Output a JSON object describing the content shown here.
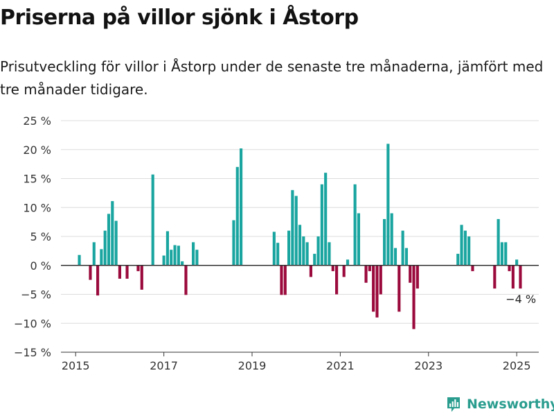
{
  "header": {
    "title": "Priserna på villor sjönk i Åstorp",
    "subtitle": "Prisutveckling för villor i Åstorp under de senaste tre månaderna, jämfört med tre månader tidigare."
  },
  "brand": {
    "name": "Newsworthy",
    "icon": "newsworthy-logo-icon"
  },
  "colors": {
    "positive": "#1aa5a0",
    "negative": "#9b0a3c",
    "grid": "#dcdcdc",
    "axis": "#333333"
  },
  "chart_data": {
    "type": "bar",
    "x_unit": "month",
    "yticks": [
      "25 %",
      "20 %",
      "15 %",
      "10 %",
      "5 %",
      "0 %",
      "−5 %",
      "−10 %",
      "−15 %"
    ],
    "ytick_values": [
      25,
      20,
      15,
      10,
      5,
      0,
      -5,
      -10,
      -15
    ],
    "xticks": [
      "2015",
      "2017",
      "2019",
      "2021",
      "2023",
      "2025"
    ],
    "xtick_dates": [
      "2015-01",
      "2017-01",
      "2019-01",
      "2021-01",
      "2023-01",
      "2025-01"
    ],
    "xlim": [
      "2014-09",
      "2025-07"
    ],
    "ylim": [
      -15,
      25
    ],
    "grid": true,
    "annotation": {
      "text": "−4 %",
      "date": "2025-01"
    },
    "points": [
      [
        "2015-02",
        1.8
      ],
      [
        "2015-05",
        -2.5
      ],
      [
        "2015-06",
        4.0
      ],
      [
        "2015-07",
        -5.2
      ],
      [
        "2015-08",
        2.8
      ],
      [
        "2015-09",
        6.0
      ],
      [
        "2015-10",
        8.9
      ],
      [
        "2015-11",
        11.1
      ],
      [
        "2015-12",
        7.7
      ],
      [
        "2016-01",
        -2.3
      ],
      [
        "2016-03",
        -2.3
      ],
      [
        "2016-06",
        -1.0
      ],
      [
        "2016-07",
        -4.2
      ],
      [
        "2016-10",
        15.7
      ],
      [
        "2017-01",
        1.7
      ],
      [
        "2017-02",
        5.9
      ],
      [
        "2017-03",
        2.7
      ],
      [
        "2017-04",
        3.5
      ],
      [
        "2017-05",
        3.4
      ],
      [
        "2017-06",
        0.7
      ],
      [
        "2017-07",
        -5.1
      ],
      [
        "2017-09",
        4.0
      ],
      [
        "2017-10",
        2.7
      ],
      [
        "2018-08",
        7.8
      ],
      [
        "2018-09",
        17.0
      ],
      [
        "2018-10",
        20.2
      ],
      [
        "2019-07",
        5.8
      ],
      [
        "2019-08",
        3.9
      ],
      [
        "2019-09",
        -5.1
      ],
      [
        "2019-10",
        -5.1
      ],
      [
        "2019-11",
        6.0
      ],
      [
        "2019-12",
        13.0
      ],
      [
        "2020-01",
        12.0
      ],
      [
        "2020-02",
        7.0
      ],
      [
        "2020-03",
        5.0
      ],
      [
        "2020-04",
        4.0
      ],
      [
        "2020-05",
        -2.0
      ],
      [
        "2020-06",
        2.0
      ],
      [
        "2020-07",
        5.0
      ],
      [
        "2020-08",
        14.0
      ],
      [
        "2020-09",
        16.0
      ],
      [
        "2020-10",
        4.0
      ],
      [
        "2020-11",
        -1.0
      ],
      [
        "2020-12",
        -5.0
      ],
      [
        "2021-02",
        -2.0
      ],
      [
        "2021-03",
        1.0
      ],
      [
        "2021-05",
        14.0
      ],
      [
        "2021-06",
        9.0
      ],
      [
        "2021-08",
        -3.0
      ],
      [
        "2021-09",
        -1.0
      ],
      [
        "2021-10",
        -8.0
      ],
      [
        "2021-11",
        -9.0
      ],
      [
        "2021-12",
        -5.0
      ],
      [
        "2022-01",
        8.0
      ],
      [
        "2022-02",
        21.0
      ],
      [
        "2022-03",
        9.0
      ],
      [
        "2022-04",
        3.0
      ],
      [
        "2022-05",
        -8.0
      ],
      [
        "2022-06",
        6.0
      ],
      [
        "2022-07",
        3.0
      ],
      [
        "2022-08",
        -3.0
      ],
      [
        "2022-09",
        -11.0
      ],
      [
        "2022-10",
        -4.0
      ],
      [
        "2023-09",
        2.0
      ],
      [
        "2023-10",
        7.0
      ],
      [
        "2023-11",
        6.0
      ],
      [
        "2023-12",
        5.0
      ],
      [
        "2024-01",
        -1.0
      ],
      [
        "2024-07",
        -4.0
      ],
      [
        "2024-08",
        8.0
      ],
      [
        "2024-09",
        4.0
      ],
      [
        "2024-10",
        4.0
      ],
      [
        "2024-11",
        -1.0
      ],
      [
        "2024-12",
        -4.0
      ],
      [
        "2025-01",
        1.0
      ],
      [
        "2025-02",
        -4.0
      ]
    ]
  }
}
